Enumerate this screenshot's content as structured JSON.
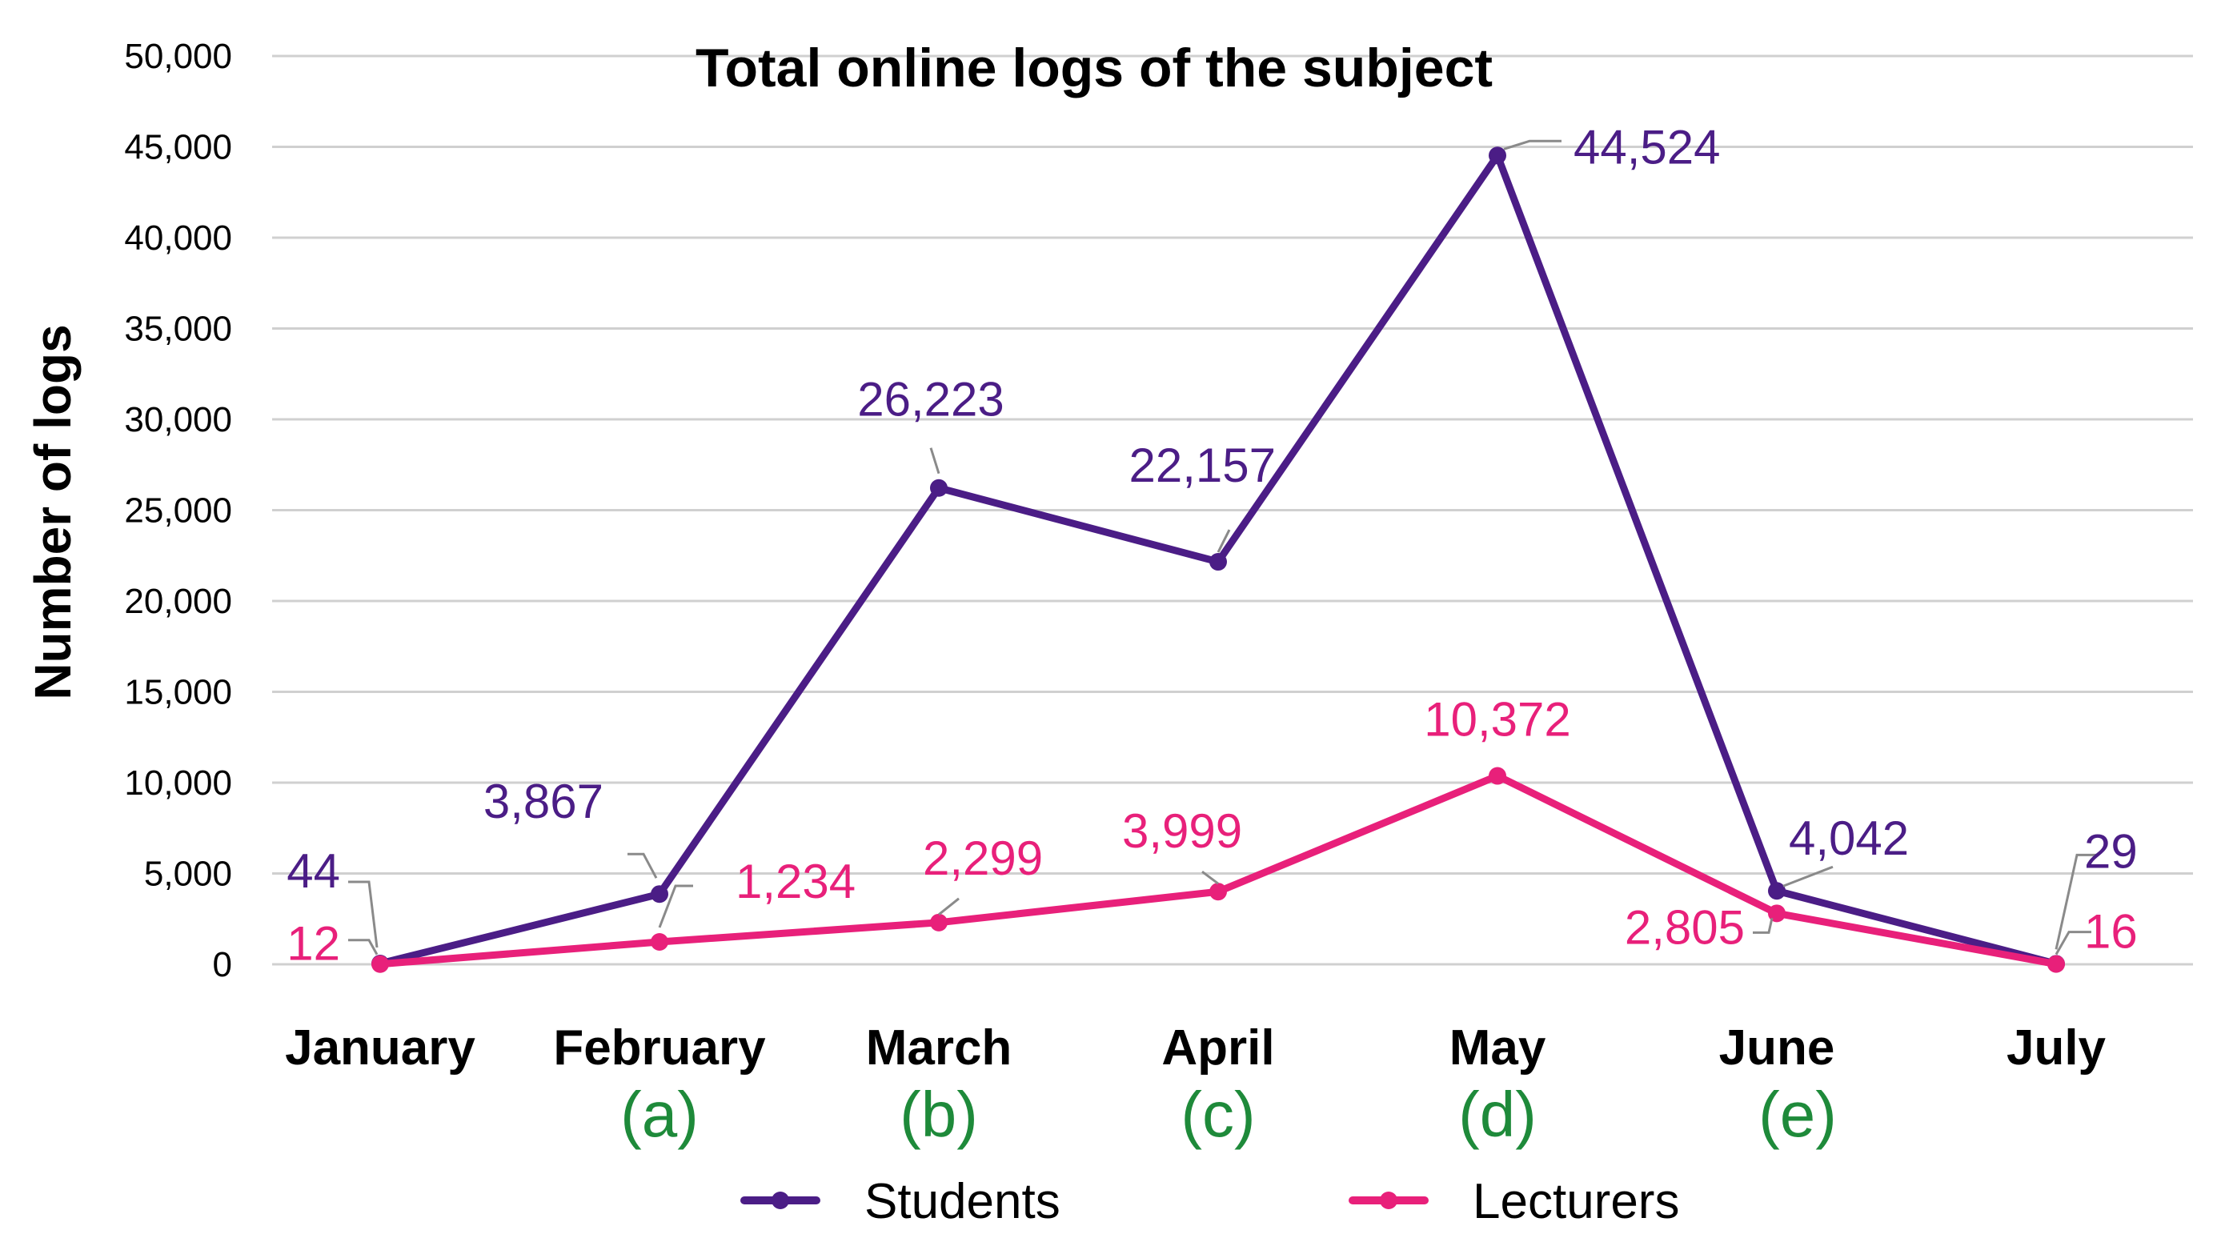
{
  "chart_data": {
    "type": "line",
    "title": "Total online logs of the subject",
    "ylabel": "Number of logs",
    "xlabel": "",
    "ylim": [
      0,
      50000
    ],
    "yticks": [
      0,
      5000,
      10000,
      15000,
      20000,
      25000,
      30000,
      35000,
      40000,
      45000,
      50000
    ],
    "ytick_labels": [
      "0",
      "5,000",
      "10,000",
      "15,000",
      "20,000",
      "25,000",
      "30,000",
      "35,000",
      "40,000",
      "45,000",
      "50,000"
    ],
    "grid": "horizontal",
    "legend_position": "bottom",
    "categories": [
      "January",
      "February",
      "March",
      "April",
      "May",
      "June",
      "July"
    ],
    "category_annotations": [
      "",
      "(a)",
      "(b)",
      "(c)",
      "(d)",
      "(e)",
      ""
    ],
    "annotation_color": "#1e8a3a",
    "series": [
      {
        "name": "Students",
        "color": "#4b1d86",
        "values": [
          44,
          3867,
          26223,
          22157,
          44524,
          4042,
          29
        ],
        "labels": [
          "44",
          "3,867",
          "26,223",
          "22,157",
          "44,524",
          "4,042",
          "29"
        ]
      },
      {
        "name": "Lecturers",
        "color": "#e8207a",
        "values": [
          12,
          1234,
          2299,
          3999,
          10372,
          2805,
          16
        ],
        "labels": [
          "12",
          "1,234",
          "2,299",
          "3,999",
          "10,372",
          "2,805",
          "16"
        ]
      }
    ]
  }
}
